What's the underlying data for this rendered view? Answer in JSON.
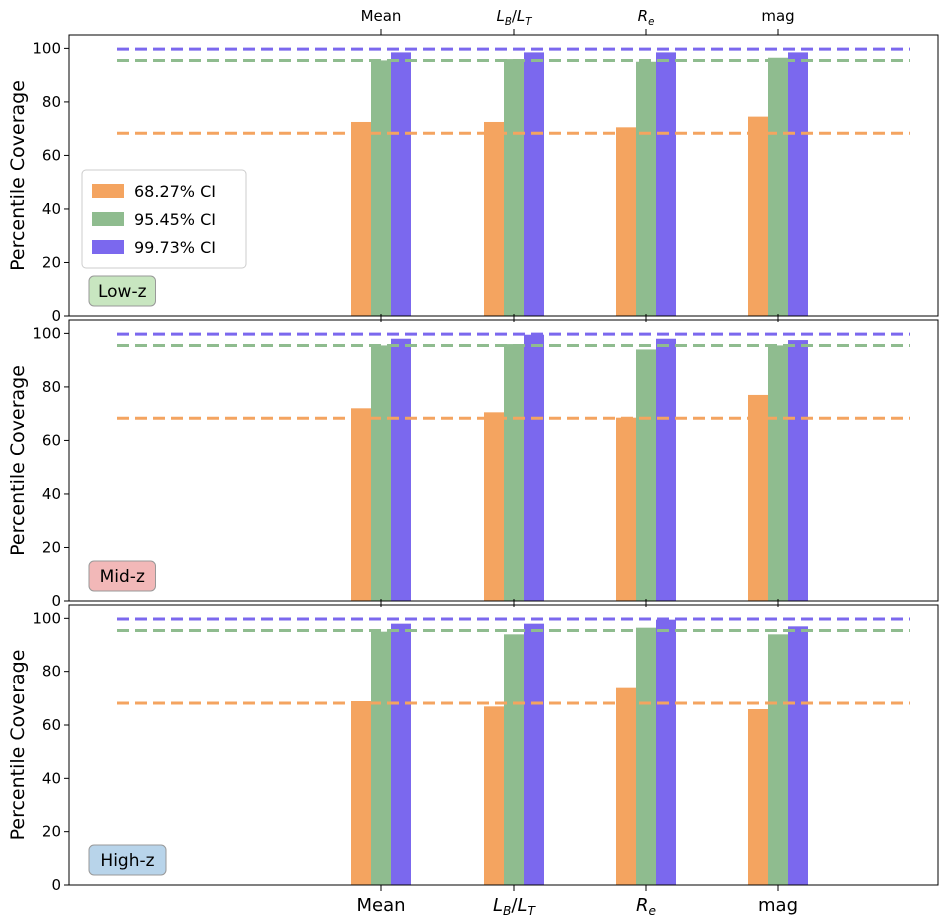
{
  "chart_data": {
    "type": "bar",
    "categories": [
      "Mean",
      "L_B/L_T",
      "R_e",
      "mag"
    ],
    "series_names": [
      "68.27% CI",
      "95.45% CI",
      "99.73% CI"
    ],
    "series_colors": [
      "#f4a460",
      "#8fbc8f",
      "#7b68ee"
    ],
    "reference_levels": [
      68.27,
      95.45,
      99.73
    ],
    "ylabel": "Percentile Coverage",
    "ylim": [
      0,
      105
    ],
    "yticks": [
      0,
      20,
      40,
      60,
      80,
      100
    ],
    "legend_placement": "center-left (top panel)",
    "panels": [
      {
        "label": "Low-z",
        "label_color": "#c8e6c0",
        "values": [
          [
            72.5,
            72.5,
            70.5,
            74.5
          ],
          [
            95.5,
            96.0,
            95.0,
            96.5
          ],
          [
            98.5,
            98.5,
            98.5,
            98.5
          ]
        ]
      },
      {
        "label": "Mid-z",
        "label_color": "#f2b8b8",
        "values": [
          [
            72.0,
            70.5,
            68.5,
            77.0
          ],
          [
            95.5,
            96.0,
            94.0,
            95.5
          ],
          [
            98.0,
            99.5,
            98.0,
            97.5
          ]
        ]
      },
      {
        "label": "High-z",
        "label_color": "#b8d4ea",
        "values": [
          [
            69.0,
            67.0,
            74.0,
            66.0
          ],
          [
            95.0,
            94.0,
            96.5,
            94.0
          ],
          [
            98.0,
            98.0,
            99.5,
            97.0
          ]
        ]
      }
    ]
  }
}
